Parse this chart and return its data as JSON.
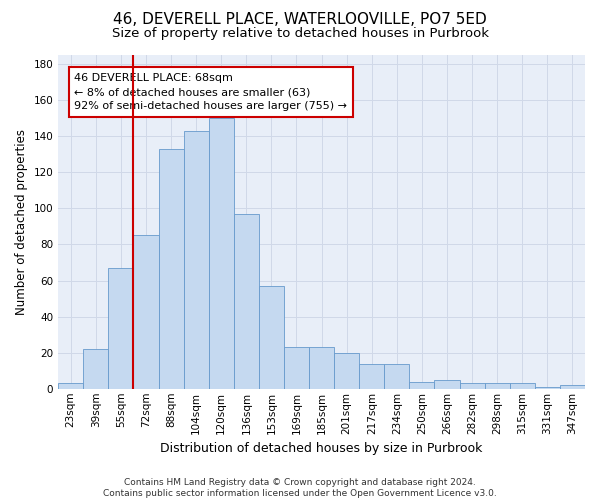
{
  "title_line1": "46, DEVERELL PLACE, WATERLOOVILLE, PO7 5ED",
  "title_line2": "Size of property relative to detached houses in Purbrook",
  "xlabel": "Distribution of detached houses by size in Purbrook",
  "ylabel": "Number of detached properties",
  "categories": [
    "23sqm",
    "39sqm",
    "55sqm",
    "72sqm",
    "88sqm",
    "104sqm",
    "120sqm",
    "136sqm",
    "153sqm",
    "169sqm",
    "185sqm",
    "201sqm",
    "217sqm",
    "234sqm",
    "250sqm",
    "266sqm",
    "282sqm",
    "298sqm",
    "315sqm",
    "331sqm",
    "347sqm"
  ],
  "values": [
    3,
    22,
    67,
    85,
    133,
    143,
    150,
    97,
    57,
    23,
    23,
    20,
    14,
    14,
    4,
    5,
    3,
    3,
    3,
    1,
    2
  ],
  "bar_color": "#c5d9f0",
  "bar_edge_color": "#6699cc",
  "vline_color": "#cc0000",
  "annotation_text": "46 DEVERELL PLACE: 68sqm\n← 8% of detached houses are smaller (63)\n92% of semi-detached houses are larger (755) →",
  "annotation_box_color": "#ffffff",
  "annotation_box_edge": "#cc0000",
  "ylim": [
    0,
    185
  ],
  "yticks": [
    0,
    20,
    40,
    60,
    80,
    100,
    120,
    140,
    160,
    180
  ],
  "grid_color": "#d0d8e8",
  "bg_color": "#e8eef8",
  "footer": "Contains HM Land Registry data © Crown copyright and database right 2024.\nContains public sector information licensed under the Open Government Licence v3.0.",
  "title_fontsize": 11,
  "subtitle_fontsize": 9.5,
  "xlabel_fontsize": 9,
  "ylabel_fontsize": 8.5,
  "tick_fontsize": 7.5,
  "footer_fontsize": 6.5,
  "ann_fontsize": 8
}
